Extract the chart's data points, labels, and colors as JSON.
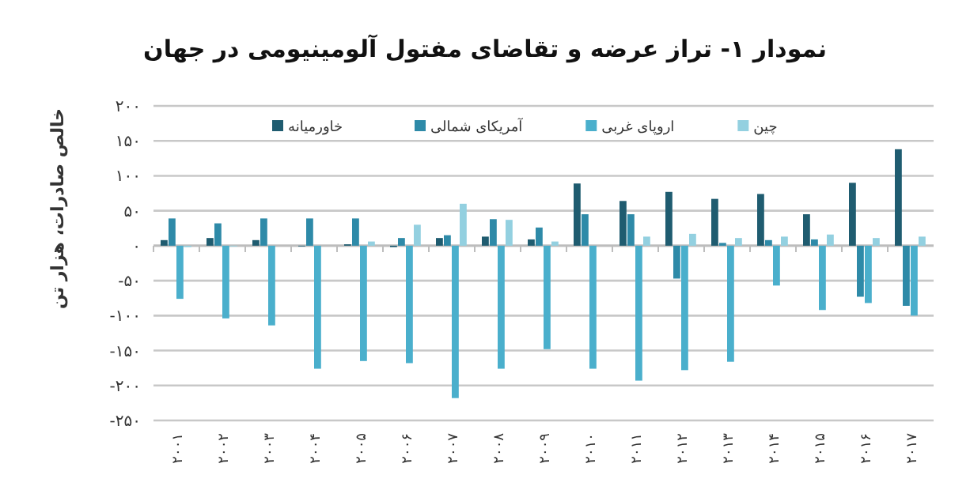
{
  "chart_data": {
    "type": "bar",
    "title": "نمودار ۱- تراز عرضه و تقاضای مفتول آلومینیومی در جهان",
    "ylabel": "خالص صادرات، هزار تن",
    "categories": [
      "۲۰۰۱",
      "۲۰۰۲",
      "۲۰۰۳",
      "۲۰۰۴",
      "۲۰۰۵",
      "۲۰۰۶",
      "۲۰۰۷",
      "۲۰۰۸",
      "۲۰۰۹",
      "۲۰۱۰",
      "۲۰۱۱",
      "۲۰۱۲",
      "۲۰۱۳",
      "۲۰۱۴",
      "۲۰۱۵",
      "۲۰۱۶",
      "۲۰۱۷"
    ],
    "series": [
      {
        "name": "خاورمیانه",
        "color": "#1f5c70",
        "values": [
          8,
          11,
          8,
          -1,
          2,
          -2,
          11,
          13,
          9,
          89,
          64,
          77,
          67,
          74,
          45,
          90,
          138
        ]
      },
      {
        "name": "آمریکای شمالی",
        "color": "#2e8aa8",
        "values": [
          39,
          32,
          39,
          39,
          39,
          11,
          15,
          38,
          26,
          45,
          45,
          -47,
          4,
          8,
          9,
          -73,
          -86
        ]
      },
      {
        "name": "اروپای غربی",
        "color": "#4aafcc",
        "values": [
          -76,
          -104,
          -114,
          -176,
          -165,
          -168,
          -218,
          -176,
          -148,
          -176,
          -193,
          -178,
          -166,
          -57,
          -92,
          -82,
          -100
        ]
      },
      {
        "name": "چین",
        "color": "#93d0e0",
        "values": [
          -2,
          -1,
          0,
          0,
          6,
          30,
          60,
          37,
          6,
          0,
          13,
          17,
          11,
          13,
          16,
          11,
          13
        ]
      }
    ],
    "ylim": [
      -250,
      200
    ],
    "yticks": [
      {
        "value": -250,
        "label": "-۲۵۰"
      },
      {
        "value": -200,
        "label": "-۲۰۰"
      },
      {
        "value": -150,
        "label": "-۱۵۰"
      },
      {
        "value": -100,
        "label": "-۱۰۰"
      },
      {
        "value": -50,
        "label": "-۵۰"
      },
      {
        "value": 0,
        "label": "۰"
      },
      {
        "value": 50,
        "label": "۵۰"
      },
      {
        "value": 100,
        "label": "۱۰۰"
      },
      {
        "value": 150,
        "label": "۱۵۰"
      },
      {
        "value": 200,
        "label": "۲۰۰"
      }
    ],
    "grid": "y",
    "legend": "top"
  }
}
